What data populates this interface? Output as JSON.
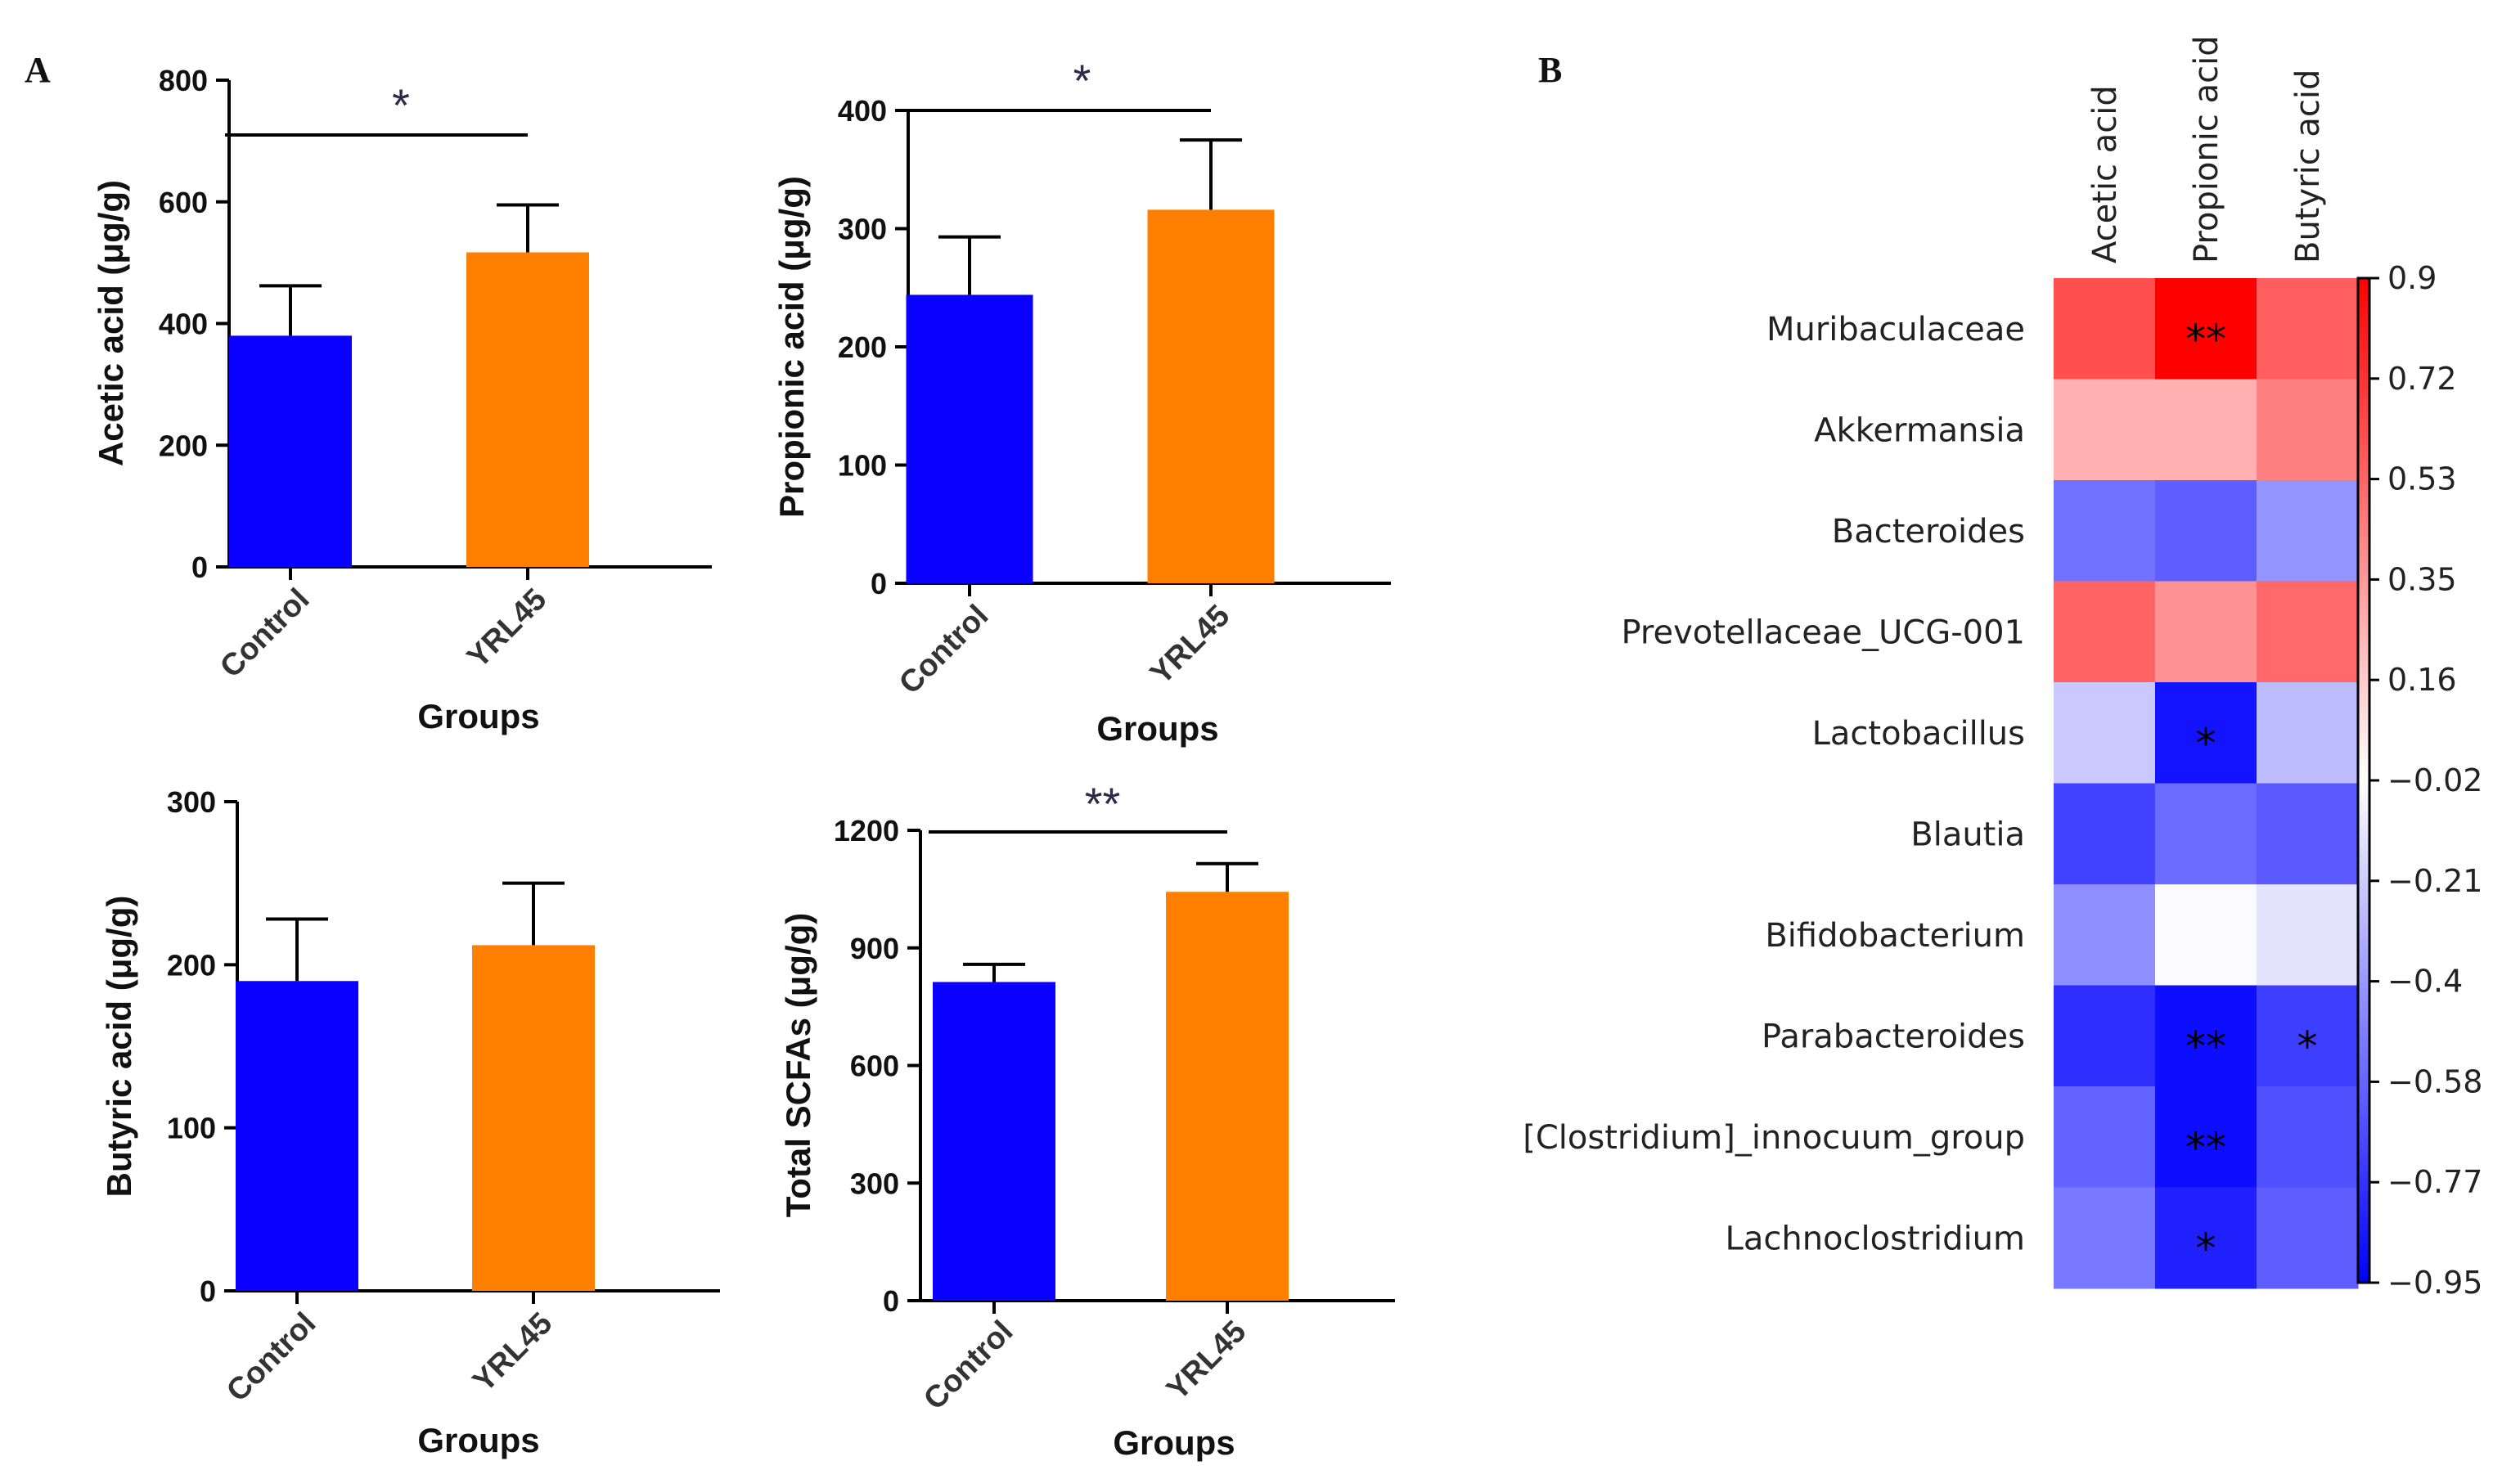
{
  "panels": {
    "a": "A",
    "b": "B"
  },
  "colors": {
    "control": "#0a00ff",
    "yrl45": "#ff8000"
  },
  "chart_data": [
    {
      "type": "bar",
      "title": "",
      "xlabel": "Groups",
      "ylabel": "Acetic acid (μg/g)",
      "categories": [
        "Control",
        "YRL45"
      ],
      "values": [
        380,
        517
      ],
      "errors": [
        82,
        78
      ],
      "ylim": [
        0,
        800
      ],
      "yticks": [
        "0",
        "200",
        "400",
        "600",
        "800"
      ],
      "significance": "*"
    },
    {
      "type": "bar",
      "title": "",
      "xlabel": "Groups",
      "ylabel": "Propionic acid (μg/g)",
      "categories": [
        "Control",
        "YRL45"
      ],
      "values": [
        244,
        316
      ],
      "errors": [
        49,
        59
      ],
      "ylim": [
        0,
        400
      ],
      "yticks": [
        "0",
        "100",
        "200",
        "300",
        "400"
      ],
      "significance": "*"
    },
    {
      "type": "bar",
      "title": "",
      "xlabel": "Groups",
      "ylabel": "Butyric acid (μg/g)",
      "categories": [
        "Control",
        "YRL45"
      ],
      "values": [
        190,
        212
      ],
      "errors": [
        38,
        38
      ],
      "ylim": [
        0,
        300
      ],
      "yticks": [
        "0",
        "100",
        "200",
        "300"
      ],
      "significance": ""
    },
    {
      "type": "bar",
      "title": "",
      "xlabel": "Groups",
      "ylabel": "Total SCFAs (μg/g)",
      "categories": [
        "Control",
        "YRL45"
      ],
      "values": [
        813,
        1043
      ],
      "errors": [
        45,
        72
      ],
      "ylim": [
        0,
        1200
      ],
      "yticks": [
        "0",
        "300",
        "600",
        "900",
        "1200"
      ],
      "significance": "**"
    },
    {
      "type": "heatmap",
      "title": "",
      "columns": [
        "Acetic acid",
        "Propionic acid",
        "Butyric acid"
      ],
      "rows": [
        "Muribaculaceae",
        "Akkermansia",
        "Bacteroides",
        "Prevotellaceae_UCG-001",
        "Lactobacillus",
        "Blautia",
        "Bifidobacterium",
        "Parabacteroides",
        "[Clostridium]_innocuum_group",
        "Lachnoclostridium"
      ],
      "values": [
        [
          0.62,
          0.9,
          0.57
        ],
        [
          0.28,
          0.28,
          0.45
        ],
        [
          -0.53,
          -0.6,
          -0.4
        ],
        [
          0.55,
          0.38,
          0.53
        ],
        [
          -0.2,
          -0.88,
          -0.25
        ],
        [
          -0.7,
          -0.55,
          -0.62
        ],
        [
          -0.42,
          -0.02,
          -0.1
        ],
        [
          -0.78,
          -0.9,
          -0.72
        ],
        [
          -0.58,
          -0.9,
          -0.65
        ],
        [
          -0.5,
          -0.83,
          -0.6
        ]
      ],
      "significance": [
        [
          "",
          "**",
          ""
        ],
        [
          "",
          "",
          ""
        ],
        [
          "",
          "",
          ""
        ],
        [
          "",
          "",
          ""
        ],
        [
          "",
          "*",
          ""
        ],
        [
          "",
          "",
          ""
        ],
        [
          "",
          "",
          ""
        ],
        [
          "",
          "**",
          "*"
        ],
        [
          "",
          "**",
          ""
        ],
        [
          "",
          "*",
          ""
        ]
      ],
      "colorbar": {
        "min": -0.95,
        "max": 0.9,
        "ticks": [
          "0.9",
          "0.72",
          "0.53",
          "0.35",
          "0.16",
          "−0.02",
          "−0.21",
          "−0.4",
          "−0.58",
          "−0.77",
          "−0.95"
        ]
      }
    }
  ]
}
